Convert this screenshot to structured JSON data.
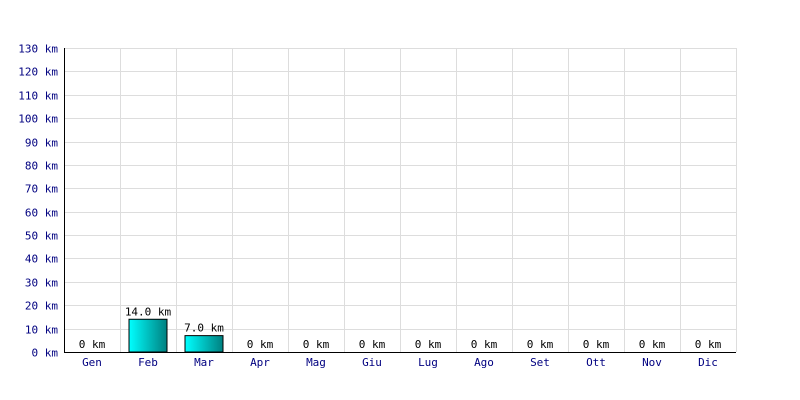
{
  "chart_data": {
    "type": "bar",
    "categories": [
      "Gen",
      "Feb",
      "Mar",
      "Apr",
      "Mag",
      "Giu",
      "Lug",
      "Ago",
      "Set",
      "Ott",
      "Nov",
      "Dic"
    ],
    "values": [
      0,
      14.0,
      7.0,
      0,
      0,
      0,
      0,
      0,
      0,
      0,
      0,
      0
    ],
    "data_labels": [
      "0 km",
      "14.0 km",
      "7.0 km",
      "0 km",
      "0 km",
      "0 km",
      "0 km",
      "0 km",
      "0 km",
      "0 km",
      "0 km",
      "0 km"
    ],
    "y_ticks": [
      0,
      10,
      20,
      30,
      40,
      50,
      60,
      70,
      80,
      90,
      100,
      110,
      120,
      130
    ],
    "y_tick_labels": [
      "0 km",
      "10 km",
      "20 km",
      "30 km",
      "40 km",
      "50 km",
      "60 km",
      "70 km",
      "80 km",
      "90 km",
      "100 km",
      "110 km",
      "120 km",
      "130 km"
    ],
    "ylim": [
      0,
      130
    ],
    "grid": true,
    "colors": {
      "bar_light": "#00ffff",
      "bar_dark": "#008080",
      "bar_border": "#000000",
      "grid": "#dddddd",
      "axis": "#000000",
      "label": "#000080"
    }
  }
}
